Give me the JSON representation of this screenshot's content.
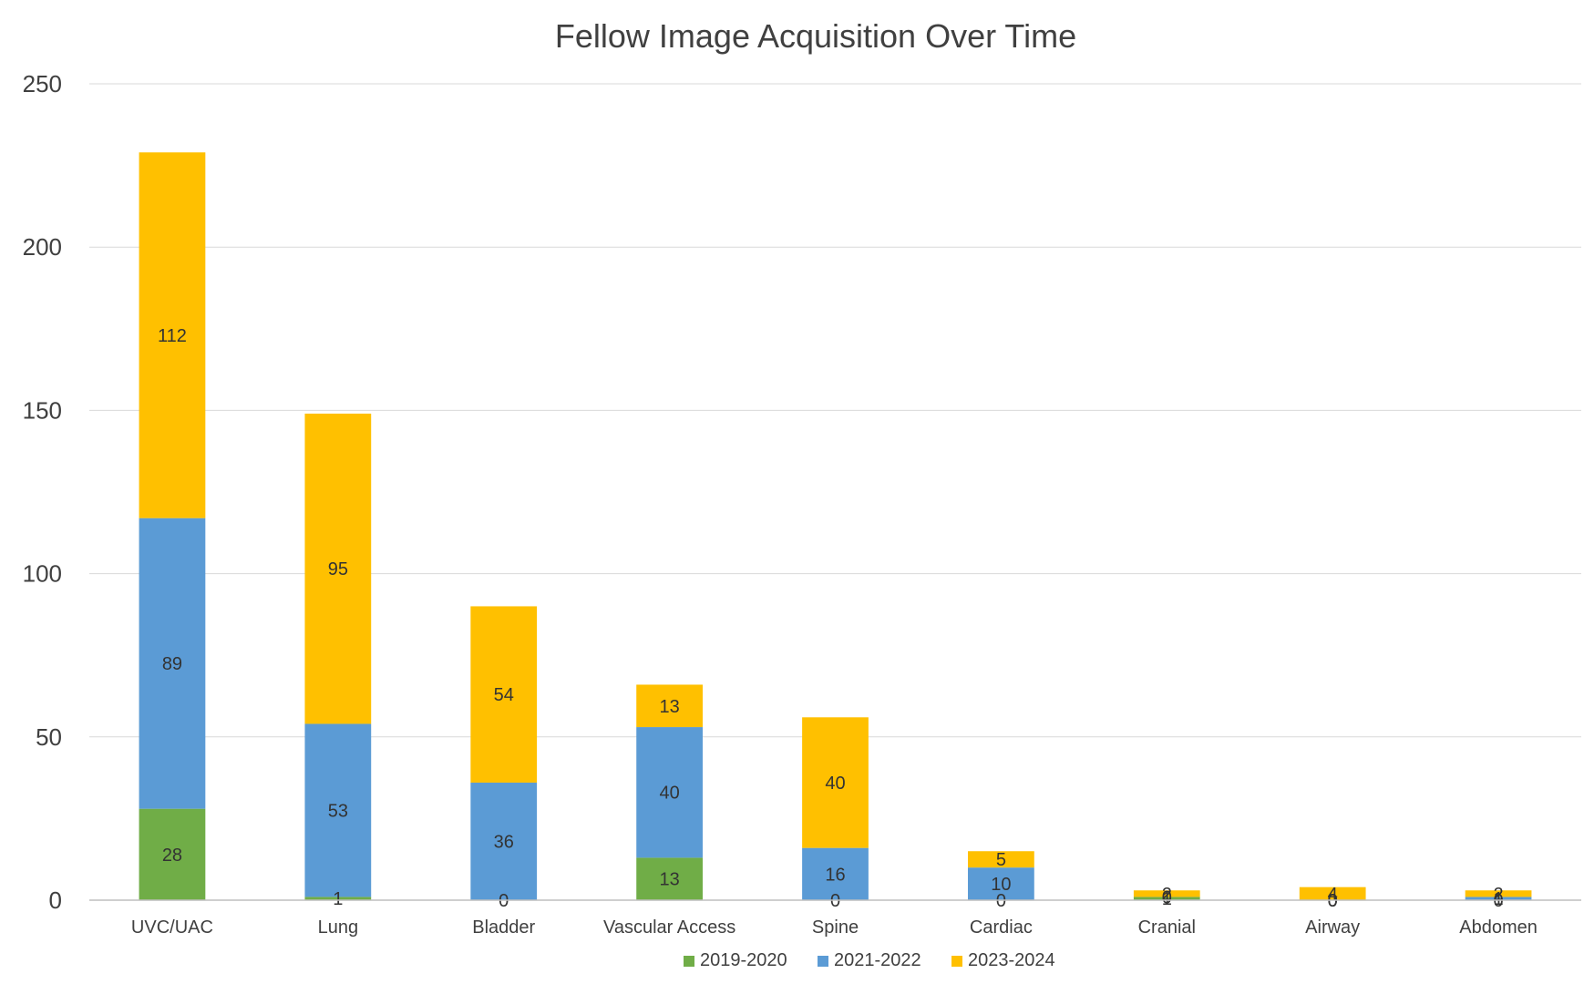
{
  "chart_data": {
    "type": "bar",
    "stacked": true,
    "title": "Fellow Image Acquisition Over Time",
    "xlabel": "",
    "ylabel": "",
    "ylim": [
      0,
      250
    ],
    "yticks": [
      0,
      50,
      100,
      150,
      200,
      250
    ],
    "grid": true,
    "legend_position": "bottom",
    "categories": [
      "UVC/UAC",
      "Lung",
      "Bladder",
      "Vascular Access",
      "Spine",
      "Cardiac",
      "Cranial",
      "Airway",
      "Abdomen"
    ],
    "series": [
      {
        "name": "2019-2020",
        "color": "#70ad47",
        "values": [
          28,
          1,
          0,
          13,
          0,
          0,
          1,
          0,
          0
        ]
      },
      {
        "name": "2021-2022",
        "color": "#5b9bd5",
        "values": [
          89,
          53,
          36,
          40,
          16,
          10,
          0,
          0,
          1
        ]
      },
      {
        "name": "2023-2024",
        "color": "#ffc000",
        "values": [
          112,
          95,
          54,
          13,
          40,
          5,
          2,
          4,
          2
        ]
      }
    ]
  }
}
